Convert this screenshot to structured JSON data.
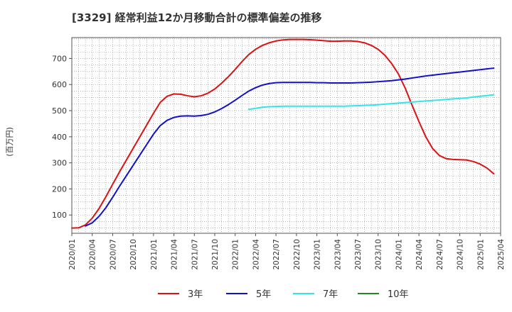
{
  "chart_data": {
    "type": "line",
    "title": "[3329]  経常利益12か月移動合計の標準偏差の推移",
    "ylabel": "(百万円)",
    "xlabel": "",
    "ylim": [
      30,
      780
    ],
    "y_ticks": [
      100,
      200,
      300,
      400,
      500,
      600,
      700
    ],
    "x_tick_labels": [
      "2020/01",
      "2020/04",
      "2020/07",
      "2020/10",
      "2021/01",
      "2021/04",
      "2021/07",
      "2021/10",
      "2022/01",
      "2022/04",
      "2022/07",
      "2022/10",
      "2023/01",
      "2023/04",
      "2023/07",
      "2023/10",
      "2024/01",
      "2024/04",
      "2024/07",
      "2024/10",
      "2025/01",
      "2025/04"
    ],
    "grid": true,
    "legend_position": "bottom",
    "series": [
      {
        "name": "3年",
        "color": "#dd1111",
        "points": [
          [
            "2020/01",
            50
          ],
          [
            "2020/02",
            51
          ],
          [
            "2020/03",
            62
          ],
          [
            "2020/04",
            88
          ],
          [
            "2020/05",
            125
          ],
          [
            "2020/06",
            170
          ],
          [
            "2020/07",
            218
          ],
          [
            "2020/08",
            265
          ],
          [
            "2020/09",
            310
          ],
          [
            "2020/10",
            355
          ],
          [
            "2020/11",
            400
          ],
          [
            "2020/12",
            445
          ],
          [
            "2021/01",
            490
          ],
          [
            "2021/02",
            532
          ],
          [
            "2021/03",
            555
          ],
          [
            "2021/04",
            564
          ],
          [
            "2021/05",
            563
          ],
          [
            "2021/06",
            557
          ],
          [
            "2021/07",
            553
          ],
          [
            "2021/08",
            557
          ],
          [
            "2021/09",
            567
          ],
          [
            "2021/10",
            583
          ],
          [
            "2021/11",
            605
          ],
          [
            "2021/12",
            630
          ],
          [
            "2022/01",
            658
          ],
          [
            "2022/02",
            688
          ],
          [
            "2022/03",
            715
          ],
          [
            "2022/04",
            735
          ],
          [
            "2022/05",
            750
          ],
          [
            "2022/06",
            760
          ],
          [
            "2022/07",
            767
          ],
          [
            "2022/08",
            771
          ],
          [
            "2022/09",
            773
          ],
          [
            "2022/10",
            773
          ],
          [
            "2022/11",
            773
          ],
          [
            "2022/12",
            772
          ],
          [
            "2023/01",
            770
          ],
          [
            "2023/02",
            768
          ],
          [
            "2023/03",
            766
          ],
          [
            "2023/04",
            766
          ],
          [
            "2023/05",
            767
          ],
          [
            "2023/06",
            767
          ],
          [
            "2023/07",
            765
          ],
          [
            "2023/08",
            760
          ],
          [
            "2023/09",
            750
          ],
          [
            "2023/10",
            735
          ],
          [
            "2023/11",
            712
          ],
          [
            "2023/12",
            680
          ],
          [
            "2024/01",
            640
          ],
          [
            "2024/02",
            585
          ],
          [
            "2024/03",
            520
          ],
          [
            "2024/04",
            458
          ],
          [
            "2024/05",
            400
          ],
          [
            "2024/06",
            355
          ],
          [
            "2024/07",
            328
          ],
          [
            "2024/08",
            316
          ],
          [
            "2024/09",
            313
          ],
          [
            "2024/10",
            312
          ],
          [
            "2024/11",
            311
          ],
          [
            "2024/12",
            305
          ],
          [
            "2025/01",
            295
          ],
          [
            "2025/02",
            280
          ],
          [
            "2025/03",
            258
          ]
        ]
      },
      {
        "name": "5年",
        "color": "#1111cc",
        "points": [
          [
            "2020/03",
            58
          ],
          [
            "2020/04",
            70
          ],
          [
            "2020/05",
            95
          ],
          [
            "2020/06",
            128
          ],
          [
            "2020/07",
            168
          ],
          [
            "2020/08",
            210
          ],
          [
            "2020/09",
            250
          ],
          [
            "2020/10",
            290
          ],
          [
            "2020/11",
            330
          ],
          [
            "2020/12",
            370
          ],
          [
            "2021/01",
            410
          ],
          [
            "2021/02",
            443
          ],
          [
            "2021/03",
            463
          ],
          [
            "2021/04",
            474
          ],
          [
            "2021/05",
            479
          ],
          [
            "2021/06",
            480
          ],
          [
            "2021/07",
            479
          ],
          [
            "2021/08",
            481
          ],
          [
            "2021/09",
            486
          ],
          [
            "2021/10",
            495
          ],
          [
            "2021/11",
            508
          ],
          [
            "2021/12",
            523
          ],
          [
            "2022/01",
            540
          ],
          [
            "2022/02",
            558
          ],
          [
            "2022/03",
            575
          ],
          [
            "2022/04",
            588
          ],
          [
            "2022/05",
            598
          ],
          [
            "2022/06",
            604
          ],
          [
            "2022/07",
            607
          ],
          [
            "2022/08",
            608
          ],
          [
            "2022/09",
            608
          ],
          [
            "2022/10",
            608
          ],
          [
            "2022/11",
            608
          ],
          [
            "2022/12",
            608
          ],
          [
            "2023/01",
            607
          ],
          [
            "2023/02",
            607
          ],
          [
            "2023/03",
            606
          ],
          [
            "2023/04",
            606
          ],
          [
            "2023/05",
            606
          ],
          [
            "2023/06",
            606
          ],
          [
            "2023/07",
            607
          ],
          [
            "2023/08",
            608
          ],
          [
            "2023/09",
            609
          ],
          [
            "2023/10",
            611
          ],
          [
            "2023/11",
            613
          ],
          [
            "2023/12",
            615
          ],
          [
            "2024/01",
            618
          ],
          [
            "2024/02",
            621
          ],
          [
            "2024/03",
            625
          ],
          [
            "2024/04",
            629
          ],
          [
            "2024/05",
            633
          ],
          [
            "2024/06",
            636
          ],
          [
            "2024/07",
            639
          ],
          [
            "2024/08",
            642
          ],
          [
            "2024/09",
            645
          ],
          [
            "2024/10",
            648
          ],
          [
            "2024/11",
            651
          ],
          [
            "2024/12",
            654
          ],
          [
            "2025/01",
            657
          ],
          [
            "2025/02",
            660
          ],
          [
            "2025/03",
            663
          ]
        ]
      },
      {
        "name": "7年",
        "color": "#33e5e5",
        "points": [
          [
            "2022/03",
            505
          ],
          [
            "2022/04",
            509
          ],
          [
            "2022/05",
            513
          ],
          [
            "2022/06",
            515
          ],
          [
            "2022/07",
            516
          ],
          [
            "2022/08",
            517
          ],
          [
            "2022/09",
            517
          ],
          [
            "2022/10",
            517
          ],
          [
            "2022/11",
            517
          ],
          [
            "2022/12",
            517
          ],
          [
            "2023/01",
            517
          ],
          [
            "2023/02",
            517
          ],
          [
            "2023/03",
            517
          ],
          [
            "2023/04",
            517
          ],
          [
            "2023/05",
            517
          ],
          [
            "2023/06",
            518
          ],
          [
            "2023/07",
            519
          ],
          [
            "2023/08",
            520
          ],
          [
            "2023/09",
            521
          ],
          [
            "2023/10",
            523
          ],
          [
            "2023/11",
            525
          ],
          [
            "2023/12",
            527
          ],
          [
            "2024/01",
            529
          ],
          [
            "2024/02",
            531
          ],
          [
            "2024/03",
            533
          ],
          [
            "2024/04",
            535
          ],
          [
            "2024/05",
            537
          ],
          [
            "2024/06",
            539
          ],
          [
            "2024/07",
            541
          ],
          [
            "2024/08",
            543
          ],
          [
            "2024/09",
            545
          ],
          [
            "2024/10",
            547
          ],
          [
            "2024/11",
            549
          ],
          [
            "2024/12",
            552
          ],
          [
            "2025/01",
            555
          ],
          [
            "2025/02",
            558
          ],
          [
            "2025/03",
            561
          ]
        ]
      },
      {
        "name": "10年",
        "color": "#228822",
        "points": []
      }
    ]
  }
}
